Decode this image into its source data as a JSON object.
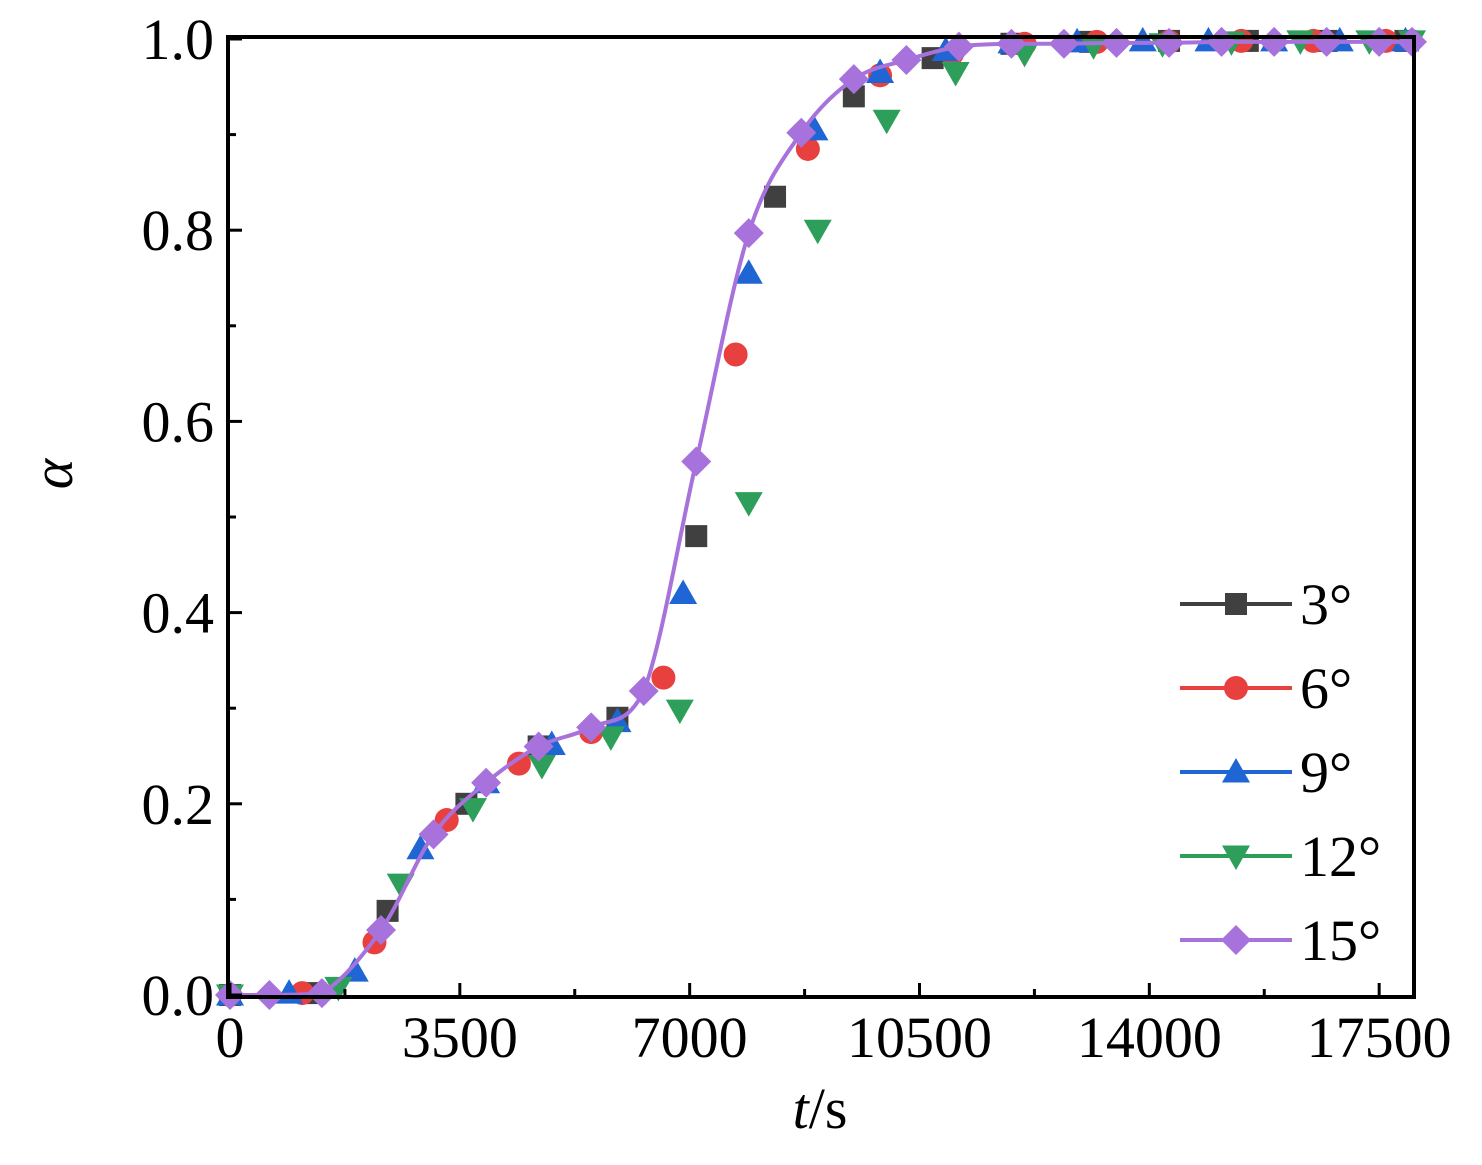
{
  "chart_data": {
    "type": "line",
    "xlabel_italic": "t",
    "xlabel_rest": "/s",
    "ylabel": "α",
    "xlim": [
      0,
      18000
    ],
    "ylim": [
      0,
      1.0
    ],
    "x_ticks": [
      0,
      3500,
      7000,
      10500,
      14000,
      17500
    ],
    "x_tick_labels": [
      "0",
      "3500",
      "7000",
      "10500",
      "14000",
      "17500"
    ],
    "y_ticks": [
      0,
      0.2,
      0.4,
      0.6,
      0.8,
      1.0
    ],
    "y_tick_labels": [
      "0.0",
      "0.2",
      "0.4",
      "0.6",
      "0.8",
      "1.0"
    ],
    "legend_position": "bottom-right",
    "series": [
      {
        "name": "3°",
        "color": "#404040",
        "marker": "square",
        "x": [
          0,
          1300,
          2400,
          3600,
          4700,
          5900,
          7100,
          8300,
          9500,
          10700,
          11900,
          13100,
          14300,
          15500,
          16700,
          17900
        ],
        "y": [
          0.0,
          0.002,
          0.088,
          0.2,
          0.26,
          0.29,
          0.48,
          0.835,
          0.94,
          0.98,
          0.995,
          0.997,
          0.998,
          0.998,
          0.998,
          0.998
        ]
      },
      {
        "name": "6°",
        "color": "#e8403f",
        "marker": "circle",
        "x": [
          0,
          1100,
          2200,
          3300,
          4400,
          5500,
          6600,
          7700,
          8800,
          9900,
          11000,
          12100,
          13200,
          14300,
          15400,
          16500,
          17600
        ],
        "y": [
          0.0,
          0.002,
          0.055,
          0.183,
          0.242,
          0.275,
          0.332,
          0.67,
          0.885,
          0.962,
          0.985,
          0.995,
          0.997,
          0.997,
          0.998,
          0.998,
          0.998
        ]
      },
      {
        "name": "9°",
        "color": "#1f66d4",
        "marker": "triangle-up",
        "x": [
          0,
          900,
          1900,
          2900,
          3900,
          4900,
          5900,
          6900,
          7900,
          8900,
          9900,
          10900,
          11900,
          12900,
          13900,
          14900,
          15900,
          16900,
          17900
        ],
        "y": [
          0.0,
          0.002,
          0.025,
          0.153,
          0.222,
          0.262,
          0.286,
          0.42,
          0.755,
          0.905,
          0.965,
          0.988,
          0.996,
          0.997,
          0.998,
          0.998,
          0.998,
          0.998,
          0.998
        ]
      },
      {
        "name": "12°",
        "color": "#2e9e5b",
        "marker": "triangle-down",
        "x": [
          0,
          1650,
          2600,
          3700,
          4750,
          5800,
          6850,
          7900,
          8950,
          10000,
          11050,
          12100,
          13150,
          14200,
          15250,
          16300,
          17350,
          18000
        ],
        "y": [
          0.0,
          0.008,
          0.116,
          0.195,
          0.24,
          0.27,
          0.298,
          0.515,
          0.8,
          0.915,
          0.965,
          0.985,
          0.993,
          0.995,
          0.997,
          0.998,
          0.998,
          0.998
        ]
      },
      {
        "name": "15°",
        "color": "#a772dc",
        "marker": "diamond",
        "x": [
          0,
          600,
          1400,
          2300,
          3100,
          3900,
          4700,
          5500,
          6300,
          7100,
          7900,
          8700,
          9500,
          10300,
          11100,
          11900,
          12700,
          13500,
          14300,
          15100,
          15900,
          16700,
          17500,
          18000
        ],
        "y": [
          0.0,
          0.0,
          0.002,
          0.068,
          0.168,
          0.222,
          0.26,
          0.28,
          0.318,
          0.558,
          0.797,
          0.902,
          0.958,
          0.978,
          0.992,
          0.995,
          0.995,
          0.996,
          0.996,
          0.997,
          0.997,
          0.997,
          0.997,
          0.997
        ],
        "curve": true
      }
    ]
  }
}
